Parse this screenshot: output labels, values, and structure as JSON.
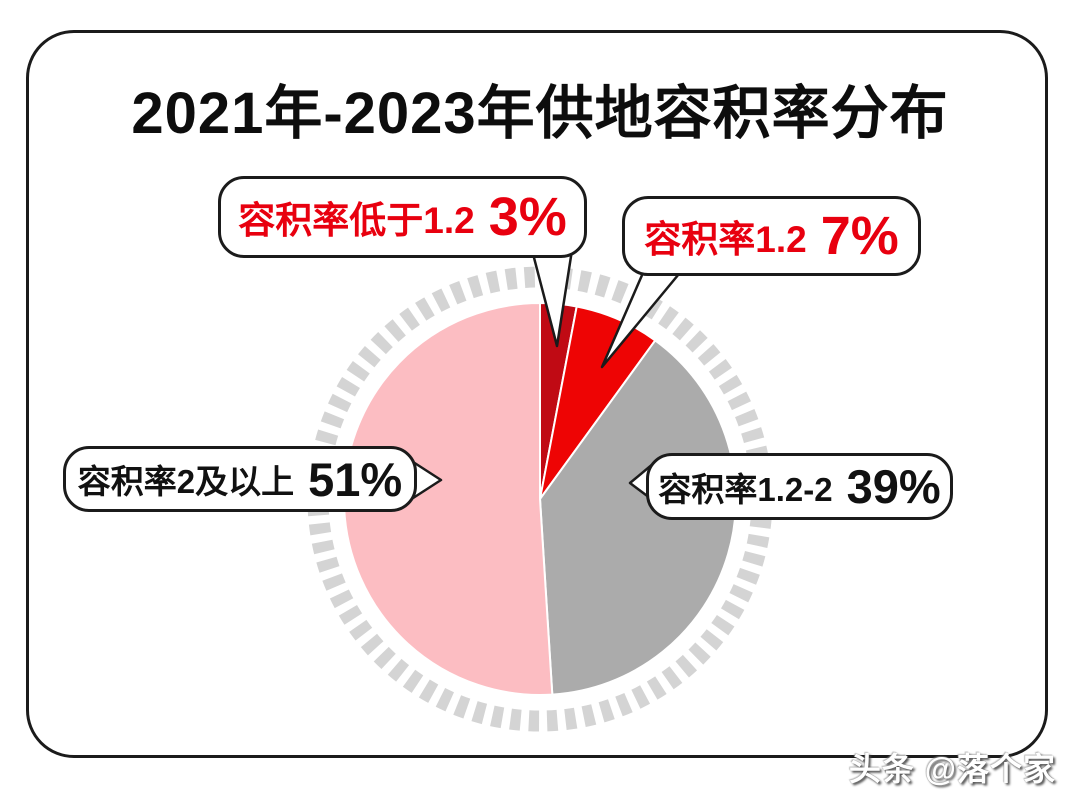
{
  "title": "2021年-2023年供地容积率分布",
  "watermark": {
    "prefix": "头条",
    "handle": "@落个家"
  },
  "chart_data": {
    "type": "pie",
    "title": "2021年-2023年供地容积率分布",
    "direction": "clockwise",
    "start_angle_deg": 0,
    "legend_position": "callout-bubbles",
    "ring_color": "#d4d4d4",
    "slices": [
      {
        "label": "容积率低于1.2",
        "value": 3,
        "display": "3%",
        "color": "#c00a14",
        "label_color": "#e8000f"
      },
      {
        "label": "容积率1.2",
        "value": 7,
        "display": "7%",
        "color": "#ee0404",
        "label_color": "#e8000f"
      },
      {
        "label": "容积率1.2-2",
        "value": 39,
        "display": "39%",
        "color": "#ababab",
        "label_color": "#111111"
      },
      {
        "label": "容积率2及以上",
        "value": 51,
        "display": "51%",
        "color": "#fcbdc2",
        "label_color": "#111111"
      }
    ]
  }
}
